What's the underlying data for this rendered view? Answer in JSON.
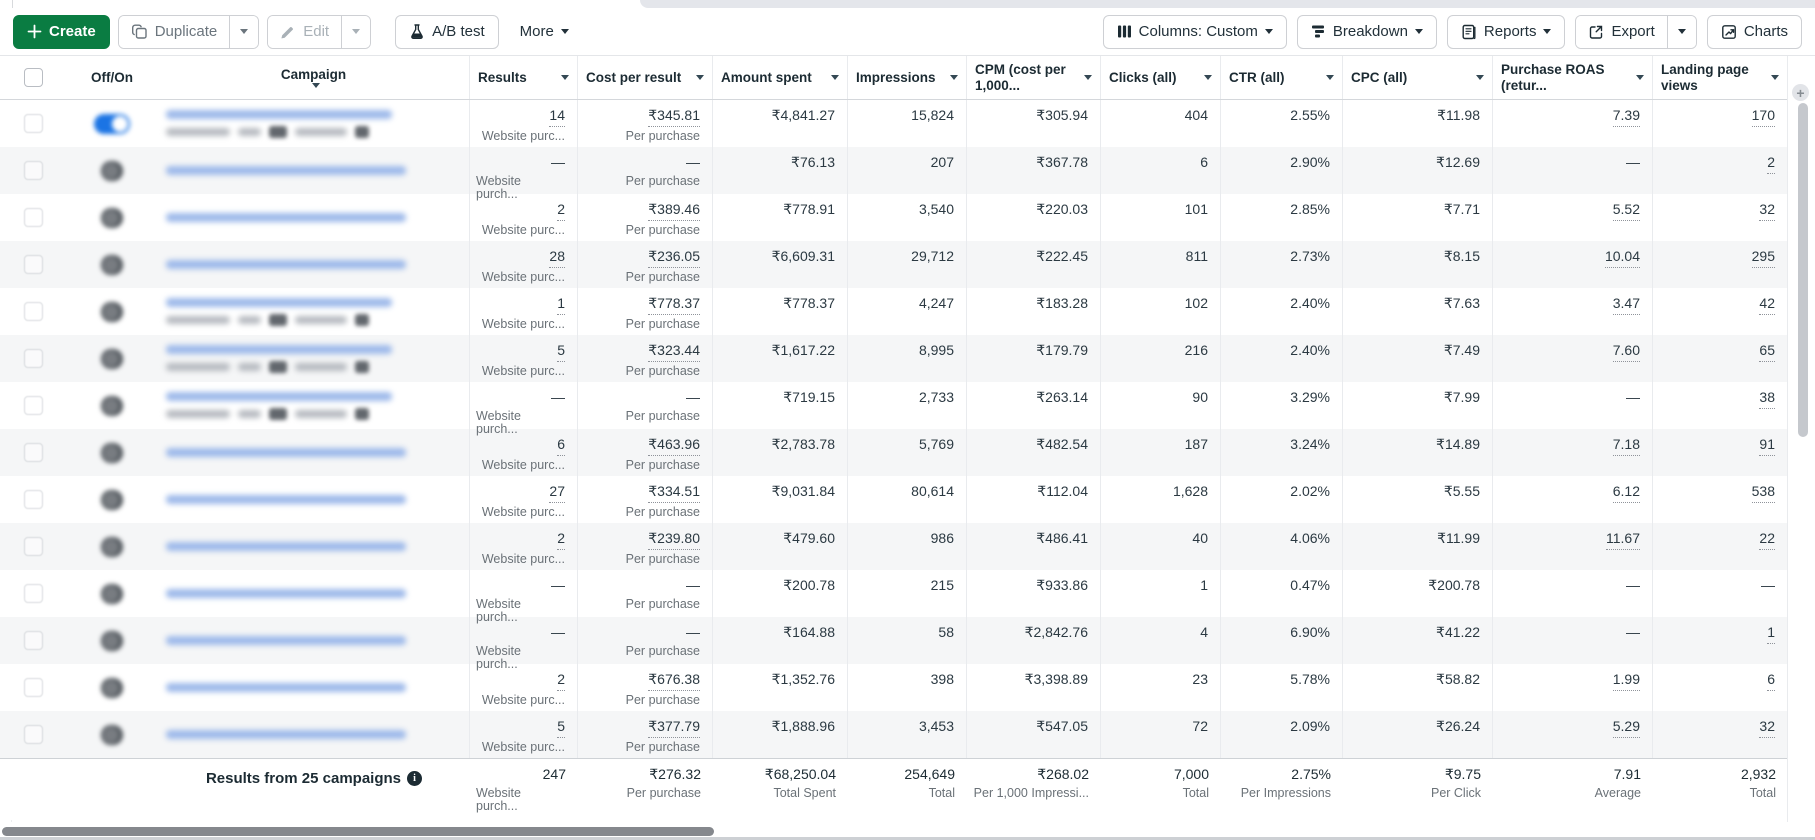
{
  "toolbar": {
    "create_label": "Create",
    "duplicate_label": "Duplicate",
    "edit_label": "Edit",
    "ab_test_label": "A/B test",
    "more_label": "More",
    "columns_label": "Columns: Custom",
    "breakdown_label": "Breakdown",
    "reports_label": "Reports",
    "export_label": "Export",
    "charts_label": "Charts"
  },
  "colors": {
    "create_green": "#0a7c42",
    "toggle_on_blue": "#1b74e4",
    "row_stripe": "#f5f6f7"
  },
  "table": {
    "headers": {
      "off_on": "Off/On",
      "campaign": "Campaign",
      "results": "Results",
      "cost_per_result": "Cost per result",
      "amount_spent": "Amount spent",
      "impressions": "Impressions",
      "cpm": "CPM (cost per 1,000...",
      "clicks": "Clicks (all)",
      "ctr": "CTR (all)",
      "cpc": "CPC (all)",
      "purchase_roas": "Purchase ROAS (retur...",
      "landing_page_views": "Landing page views"
    },
    "rows": [
      {
        "toggle": "on",
        "campaign_blurred": true,
        "campaign_two_line": true,
        "results": "14",
        "results_sub": "Website purc...",
        "cpr": "₹345.81",
        "cpr_sub": "Per purchase",
        "spent": "₹4,841.27",
        "impr": "15,824",
        "cpm": "₹305.94",
        "clicks": "404",
        "ctr": "2.55%",
        "cpc": "₹11.98",
        "roas": "7.39",
        "lpv": "170"
      },
      {
        "toggle": "off",
        "campaign_blurred": true,
        "campaign_two_line": false,
        "results": "—",
        "results_sub": "Website purch...",
        "cpr": "—",
        "cpr_sub": "Per purchase",
        "spent": "₹76.13",
        "impr": "207",
        "cpm": "₹367.78",
        "clicks": "6",
        "ctr": "2.90%",
        "cpc": "₹12.69",
        "roas": "—",
        "lpv": "2"
      },
      {
        "toggle": "off",
        "campaign_blurred": true,
        "campaign_two_line": false,
        "results": "2",
        "results_sub": "Website purc...",
        "cpr": "₹389.46",
        "cpr_sub": "Per purchase",
        "spent": "₹778.91",
        "impr": "3,540",
        "cpm": "₹220.03",
        "clicks": "101",
        "ctr": "2.85%",
        "cpc": "₹7.71",
        "roas": "5.52",
        "lpv": "32"
      },
      {
        "toggle": "off",
        "campaign_blurred": true,
        "campaign_two_line": false,
        "results": "28",
        "results_sub": "Website purc...",
        "cpr": "₹236.05",
        "cpr_sub": "Per purchase",
        "spent": "₹6,609.31",
        "impr": "29,712",
        "cpm": "₹222.45",
        "clicks": "811",
        "ctr": "2.73%",
        "cpc": "₹8.15",
        "roas": "10.04",
        "lpv": "295"
      },
      {
        "toggle": "off",
        "campaign_blurred": true,
        "campaign_two_line": true,
        "results": "1",
        "results_sub": "Website purc...",
        "cpr": "₹778.37",
        "cpr_sub": "Per purchase",
        "spent": "₹778.37",
        "impr": "4,247",
        "cpm": "₹183.28",
        "clicks": "102",
        "ctr": "2.40%",
        "cpc": "₹7.63",
        "roas": "3.47",
        "lpv": "42"
      },
      {
        "toggle": "off",
        "campaign_blurred": true,
        "campaign_two_line": true,
        "results": "5",
        "results_sub": "Website purc...",
        "cpr": "₹323.44",
        "cpr_sub": "Per purchase",
        "spent": "₹1,617.22",
        "impr": "8,995",
        "cpm": "₹179.79",
        "clicks": "216",
        "ctr": "2.40%",
        "cpc": "₹7.49",
        "roas": "7.60",
        "lpv": "65"
      },
      {
        "toggle": "off",
        "campaign_blurred": true,
        "campaign_two_line": true,
        "results": "—",
        "results_sub": "Website purch...",
        "cpr": "—",
        "cpr_sub": "Per purchase",
        "spent": "₹719.15",
        "impr": "2,733",
        "cpm": "₹263.14",
        "clicks": "90",
        "ctr": "3.29%",
        "cpc": "₹7.99",
        "roas": "—",
        "lpv": "38"
      },
      {
        "toggle": "off",
        "campaign_blurred": true,
        "campaign_two_line": false,
        "results": "6",
        "results_sub": "Website purc...",
        "cpr": "₹463.96",
        "cpr_sub": "Per purchase",
        "spent": "₹2,783.78",
        "impr": "5,769",
        "cpm": "₹482.54",
        "clicks": "187",
        "ctr": "3.24%",
        "cpc": "₹14.89",
        "roas": "7.18",
        "lpv": "91"
      },
      {
        "toggle": "off",
        "campaign_blurred": true,
        "campaign_two_line": false,
        "results": "27",
        "results_sub": "Website purc...",
        "cpr": "₹334.51",
        "cpr_sub": "Per purchase",
        "spent": "₹9,031.84",
        "impr": "80,614",
        "cpm": "₹112.04",
        "clicks": "1,628",
        "ctr": "2.02%",
        "cpc": "₹5.55",
        "roas": "6.12",
        "lpv": "538"
      },
      {
        "toggle": "off",
        "campaign_blurred": true,
        "campaign_two_line": false,
        "results": "2",
        "results_sub": "Website purc...",
        "cpr": "₹239.80",
        "cpr_sub": "Per purchase",
        "spent": "₹479.60",
        "impr": "986",
        "cpm": "₹486.41",
        "clicks": "40",
        "ctr": "4.06%",
        "cpc": "₹11.99",
        "roas": "11.67",
        "lpv": "22"
      },
      {
        "toggle": "off",
        "campaign_blurred": true,
        "campaign_two_line": false,
        "results": "—",
        "results_sub": "Website purch...",
        "cpr": "—",
        "cpr_sub": "Per purchase",
        "spent": "₹200.78",
        "impr": "215",
        "cpm": "₹933.86",
        "clicks": "1",
        "ctr": "0.47%",
        "cpc": "₹200.78",
        "roas": "—",
        "lpv": "—"
      },
      {
        "toggle": "off",
        "campaign_blurred": true,
        "campaign_two_line": false,
        "results": "—",
        "results_sub": "Website purch...",
        "cpr": "—",
        "cpr_sub": "Per purchase",
        "spent": "₹164.88",
        "impr": "58",
        "cpm": "₹2,842.76",
        "clicks": "4",
        "ctr": "6.90%",
        "cpc": "₹41.22",
        "roas": "—",
        "lpv": "1"
      },
      {
        "toggle": "off",
        "campaign_blurred": true,
        "campaign_two_line": false,
        "results": "2",
        "results_sub": "Website purc...",
        "cpr": "₹676.38",
        "cpr_sub": "Per purchase",
        "spent": "₹1,352.76",
        "impr": "398",
        "cpm": "₹3,398.89",
        "clicks": "23",
        "ctr": "5.78%",
        "cpc": "₹58.82",
        "roas": "1.99",
        "lpv": "6"
      },
      {
        "toggle": "off",
        "campaign_blurred": true,
        "campaign_two_line": false,
        "results": "5",
        "results_sub": "Website purc...",
        "cpr": "₹377.79",
        "cpr_sub": "Per purchase",
        "spent": "₹1,888.96",
        "impr": "3,453",
        "cpm": "₹547.05",
        "clicks": "72",
        "ctr": "2.09%",
        "cpc": "₹26.24",
        "roas": "5.29",
        "lpv": "32"
      }
    ],
    "footer": {
      "label": "Results from 25 campaigns",
      "results": "247",
      "results_sub": "Website purch...",
      "cpr": "₹276.32",
      "cpr_sub": "Per purchase",
      "spent": "₹68,250.04",
      "spent_sub": "Total Spent",
      "impr": "254,649",
      "impr_sub": "Total",
      "cpm": "₹268.02",
      "cpm_sub": "Per 1,000 Impressi...",
      "clicks": "7,000",
      "clicks_sub": "Total",
      "ctr": "2.75%",
      "ctr_sub": "Per Impressions",
      "cpc": "₹9.75",
      "cpc_sub": "Per Click",
      "roas": "7.91",
      "roas_sub": "Average",
      "lpv": "2,932",
      "lpv_sub": "Total"
    }
  }
}
